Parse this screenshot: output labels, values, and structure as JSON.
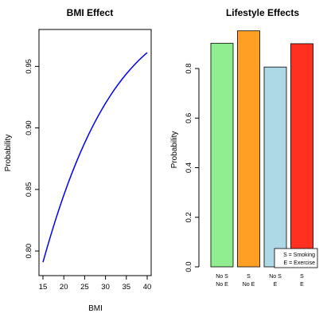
{
  "chart_data": [
    {
      "type": "line",
      "title": "BMI Effect",
      "xlabel": "BMI",
      "ylabel": "Probability",
      "xlim": [
        15,
        40
      ],
      "ylim": [
        0.78,
        0.98
      ],
      "xticks": [
        15,
        20,
        25,
        30,
        35,
        40
      ],
      "yticks": [
        0.8,
        0.85,
        0.9,
        0.95
      ],
      "ytick_labels": [
        "0.80",
        "0.85",
        "0.90",
        "0.95"
      ],
      "series": [
        {
          "color": "#0000ff",
          "x": [
            15,
            16,
            17,
            18,
            19,
            20,
            21,
            22,
            23,
            24,
            25,
            26,
            27,
            28,
            29,
            30,
            31,
            32,
            33,
            34,
            35,
            36,
            37,
            38,
            39,
            40
          ],
          "y": [
            0.7909,
            0.8028,
            0.8142,
            0.8251,
            0.8355,
            0.8454,
            0.8548,
            0.8637,
            0.8722,
            0.8802,
            0.8878,
            0.895,
            0.9018,
            0.9082,
            0.9143,
            0.92,
            0.9254,
            0.9305,
            0.9352,
            0.9397,
            0.9439,
            0.9478,
            0.9515,
            0.955,
            0.9582,
            0.9612
          ]
        }
      ],
      "grid": false
    },
    {
      "type": "bar",
      "title": "Lifestyle Effects",
      "ylabel": "Probability",
      "ylim": [
        0,
        0.98
      ],
      "yticks": [
        0.0,
        0.2,
        0.4,
        0.6,
        0.8
      ],
      "ytick_labels": [
        "0.0",
        "0.2",
        "0.4",
        "0.6",
        "0.8"
      ],
      "categories": [
        [
          "No S",
          "No E"
        ],
        [
          "S",
          "No E"
        ],
        [
          "No S",
          "E"
        ],
        [
          "S",
          "E"
        ]
      ],
      "values": [
        0.902,
        0.952,
        0.806,
        0.9
      ],
      "colors": [
        "#90ee90",
        "#ffa024",
        "#add8e6",
        "#ff3020"
      ],
      "legend": {
        "position": "bottom-right",
        "entries": [
          "S = Smoking",
          "E = Exercise"
        ]
      },
      "grid": false
    }
  ]
}
